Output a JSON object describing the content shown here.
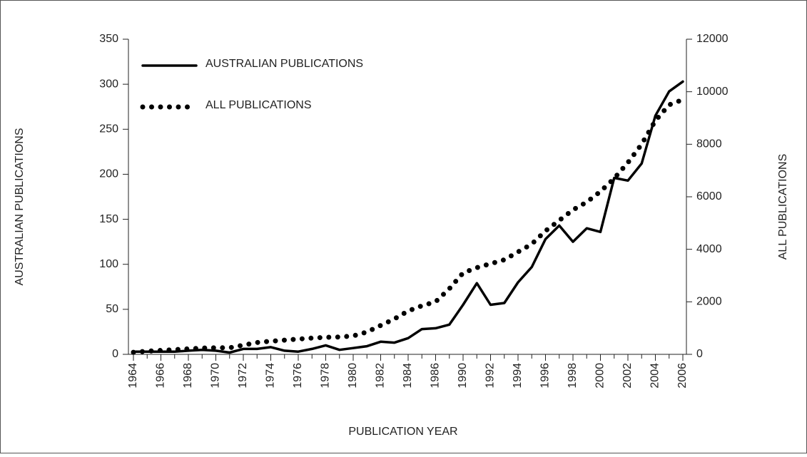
{
  "chart_data": {
    "type": "line",
    "categories": [
      "1964",
      null,
      "1966",
      null,
      "1968",
      null,
      "1970",
      null,
      "1972",
      null,
      "1974",
      null,
      "1976",
      null,
      "1978",
      null,
      "1980",
      null,
      "1982",
      null,
      "1984",
      null,
      "1986",
      null,
      "1990",
      null,
      "1992",
      null,
      "1994",
      null,
      "1996",
      null,
      "1998",
      null,
      "2000",
      null,
      "2002",
      null,
      "2004",
      null,
      "2006"
    ],
    "series": [
      {
        "name": "AUSTRALIAN PUBLICATIONS",
        "color": "#000000",
        "linestyle": "solid",
        "values": [
          3,
          3,
          3,
          3,
          4,
          5,
          4,
          2,
          6,
          6,
          8,
          4,
          3,
          6,
          10,
          5,
          7,
          9,
          14,
          13,
          18,
          28,
          29,
          33,
          55,
          79,
          55,
          57,
          80,
          97,
          128,
          143,
          125,
          140,
          136,
          196,
          193,
          212,
          265,
          292,
          303
        ]
      },
      {
        "name": "ALL PUBLICATIONS",
        "color": "#000000",
        "linestyle": "dotted",
        "axis": "y2",
        "values": [
          80,
          120,
          150,
          180,
          210,
          240,
          250,
          250,
          350,
          450,
          500,
          540,
          580,
          620,
          650,
          660,
          700,
          850,
          1100,
          1350,
          1650,
          1850,
          2000,
          2500,
          3100,
          3300,
          3450,
          3600,
          3900,
          4200,
          4700,
          5100,
          5500,
          5800,
          6200,
          6700,
          7300,
          8000,
          8900,
          9500,
          9700
        ]
      }
    ],
    "xlabel": "PUBLICATION YEAR",
    "ylabel": "AUSTRALIAN PUBLICATIONS",
    "y2label": "ALL PUBLICATIONS",
    "ylim": [
      0,
      350
    ],
    "yticks": [
      0,
      50,
      100,
      150,
      200,
      250,
      300,
      350
    ],
    "y2lim": [
      0,
      12000
    ],
    "y2ticks": [
      0,
      2000,
      4000,
      6000,
      8000,
      10000,
      12000
    ],
    "legend": "upper left",
    "grid": false
  }
}
